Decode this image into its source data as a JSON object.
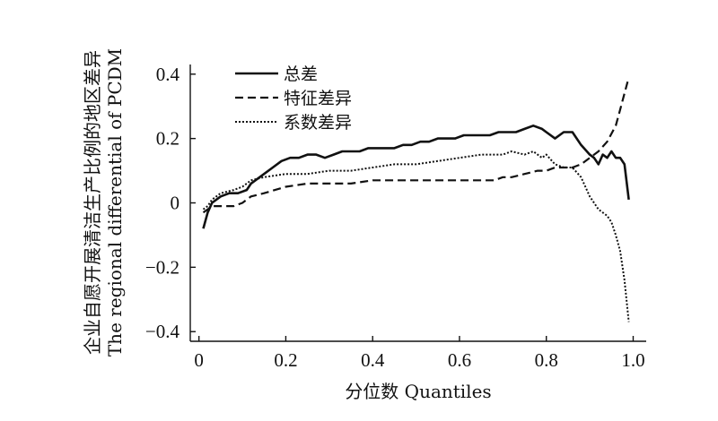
{
  "chart_data": {
    "type": "line",
    "xlabel": "分位数 Quantiles",
    "ylabel_lines": [
      "企业自愿开展清洁生产比例的地区差异",
      "The regional differential of PCDM"
    ],
    "xlim": [
      -0.02,
      1.03
    ],
    "ylim": [
      -0.43,
      0.43
    ],
    "x_ticks": [
      0,
      0.2,
      0.4,
      0.6,
      0.8,
      1.0
    ],
    "x_tick_labels": [
      "0",
      "0.2",
      "0.4",
      "0.6",
      "0.8",
      "1.0"
    ],
    "y_ticks": [
      -0.4,
      -0.2,
      0,
      0.2,
      0.4
    ],
    "y_tick_labels": [
      "−0.4",
      "−0.2",
      "0",
      "0.2",
      "0.4"
    ],
    "grid": false,
    "legend_position": "top-left",
    "series": [
      {
        "name": "总差",
        "style": "solid",
        "x": [
          0.01,
          0.02,
          0.03,
          0.05,
          0.07,
          0.09,
          0.11,
          0.12,
          0.13,
          0.15,
          0.17,
          0.19,
          0.21,
          0.23,
          0.25,
          0.27,
          0.29,
          0.31,
          0.33,
          0.35,
          0.37,
          0.39,
          0.41,
          0.43,
          0.45,
          0.47,
          0.49,
          0.51,
          0.53,
          0.55,
          0.57,
          0.59,
          0.61,
          0.63,
          0.65,
          0.67,
          0.69,
          0.71,
          0.73,
          0.75,
          0.77,
          0.79,
          0.8,
          0.82,
          0.84,
          0.86,
          0.88,
          0.9,
          0.91,
          0.92,
          0.93,
          0.94,
          0.95,
          0.96,
          0.97,
          0.98,
          0.99
        ],
        "y": [
          -0.08,
          -0.03,
          0.0,
          0.02,
          0.03,
          0.03,
          0.04,
          0.06,
          0.07,
          0.09,
          0.11,
          0.13,
          0.14,
          0.14,
          0.15,
          0.15,
          0.14,
          0.15,
          0.16,
          0.16,
          0.16,
          0.17,
          0.17,
          0.17,
          0.17,
          0.18,
          0.18,
          0.19,
          0.19,
          0.2,
          0.2,
          0.2,
          0.21,
          0.21,
          0.21,
          0.21,
          0.22,
          0.22,
          0.22,
          0.23,
          0.24,
          0.23,
          0.22,
          0.2,
          0.22,
          0.22,
          0.18,
          0.15,
          0.14,
          0.12,
          0.15,
          0.14,
          0.16,
          0.14,
          0.14,
          0.12,
          0.01
        ]
      },
      {
        "name": "特征差异",
        "style": "dashed",
        "x": [
          0.01,
          0.02,
          0.03,
          0.05,
          0.08,
          0.1,
          0.12,
          0.15,
          0.2,
          0.25,
          0.3,
          0.35,
          0.4,
          0.45,
          0.5,
          0.55,
          0.6,
          0.65,
          0.68,
          0.7,
          0.72,
          0.75,
          0.78,
          0.8,
          0.82,
          0.84,
          0.86,
          0.88,
          0.9,
          0.92,
          0.94,
          0.96,
          0.97,
          0.98,
          0.99
        ],
        "y": [
          -0.03,
          -0.02,
          -0.01,
          -0.01,
          -0.01,
          0.0,
          0.02,
          0.03,
          0.05,
          0.06,
          0.06,
          0.06,
          0.07,
          0.07,
          0.07,
          0.07,
          0.07,
          0.07,
          0.07,
          0.08,
          0.08,
          0.09,
          0.1,
          0.1,
          0.11,
          0.11,
          0.11,
          0.12,
          0.14,
          0.16,
          0.19,
          0.24,
          0.29,
          0.34,
          0.39
        ]
      },
      {
        "name": "系数差异",
        "style": "dotted",
        "x": [
          0.01,
          0.02,
          0.03,
          0.05,
          0.08,
          0.1,
          0.12,
          0.15,
          0.2,
          0.25,
          0.3,
          0.35,
          0.4,
          0.45,
          0.5,
          0.55,
          0.6,
          0.65,
          0.7,
          0.72,
          0.75,
          0.77,
          0.79,
          0.8,
          0.82,
          0.84,
          0.86,
          0.88,
          0.9,
          0.92,
          0.94,
          0.95,
          0.96,
          0.97,
          0.98,
          0.99
        ],
        "y": [
          -0.02,
          -0.01,
          0.01,
          0.03,
          0.04,
          0.05,
          0.07,
          0.08,
          0.09,
          0.09,
          0.1,
          0.1,
          0.11,
          0.12,
          0.12,
          0.13,
          0.14,
          0.15,
          0.15,
          0.16,
          0.15,
          0.16,
          0.14,
          0.15,
          0.12,
          0.11,
          0.11,
          0.08,
          0.02,
          -0.02,
          -0.04,
          -0.06,
          -0.1,
          -0.15,
          -0.24,
          -0.37
        ]
      }
    ]
  }
}
